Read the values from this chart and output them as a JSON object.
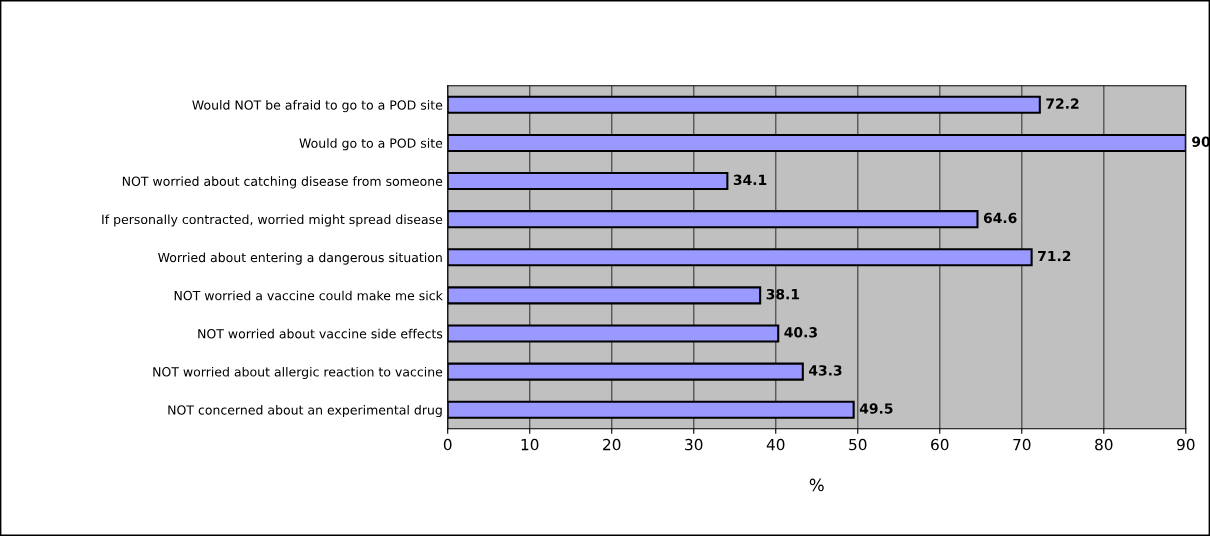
{
  "chart_data": {
    "type": "bar",
    "orientation": "horizontal",
    "xlabel": "%",
    "categories": [
      "Would NOT be afraid to go to a POD site",
      "Would go to a POD site",
      "NOT worried about catching disease from someone",
      "If personally contracted, worried might spread disease",
      "Worried about entering a dangerous situation",
      "NOT worried a vaccine could make me sick",
      "NOT worried about vaccine side effects",
      "NOT worried about allergic reaction to vaccine",
      "NOT concerned about an experimental drug"
    ],
    "values": [
      72.2,
      90,
      34.1,
      64.6,
      71.2,
      38.1,
      40.3,
      43.3,
      49.5
    ],
    "color": "#9999ff",
    "xlim": [
      0,
      90
    ],
    "xticks": [
      0,
      10,
      20,
      30,
      40,
      50,
      60,
      70,
      80,
      90
    ],
    "grid": "x",
    "data_labels": true
  }
}
